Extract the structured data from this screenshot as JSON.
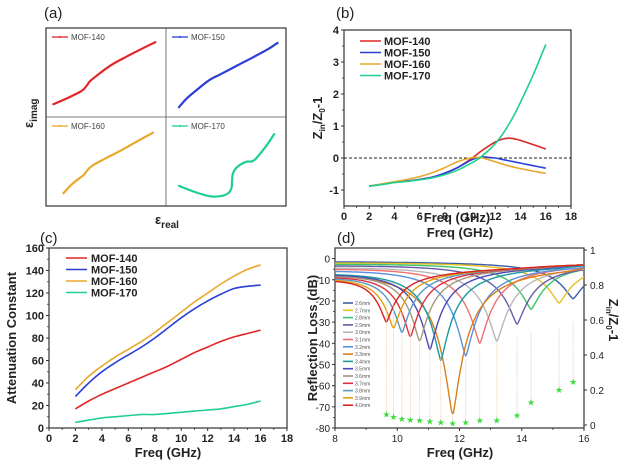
{
  "figure": {
    "panels": [
      "(a)",
      "(b)",
      "(c)",
      "(d)"
    ]
  },
  "colors": {
    "MOF-140": "#e02626",
    "MOF-150": "#2b3fd6",
    "MOF-160": "#e8a92b",
    "MOF-170": "#1fcf8e",
    "stars": "#3ddc3d",
    "droplines": "#f0c9a8"
  },
  "chart_data": [
    {
      "panel": "(a)",
      "type": "line",
      "title": "",
      "xlabel": "ε_real",
      "ylabel": "ε_imag",
      "xlabel_main": "ε",
      "xlabel_sub": "real",
      "ylabel_main": "ε",
      "ylabel_sub": "imag",
      "note": "2x2 grid of Cole-Cole curves, no numeric ticks; values normalized 0-1 within each cell",
      "series": [
        {
          "name": "MOF-140",
          "x": [
            0.03,
            0.15,
            0.28,
            0.33,
            0.36,
            0.45,
            0.55,
            0.68,
            0.82,
            0.94
          ],
          "y": [
            0.12,
            0.2,
            0.3,
            0.38,
            0.44,
            0.55,
            0.66,
            0.77,
            0.88,
            0.97
          ]
        },
        {
          "name": "MOF-150",
          "x": [
            0.08,
            0.15,
            0.25,
            0.35,
            0.45,
            0.6,
            0.75,
            0.88,
            0.96
          ],
          "y": [
            0.08,
            0.2,
            0.33,
            0.45,
            0.53,
            0.65,
            0.77,
            0.88,
            0.96
          ]
        },
        {
          "name": "MOF-160",
          "x": [
            0.12,
            0.2,
            0.3,
            0.33,
            0.38,
            0.5,
            0.65,
            0.8,
            0.92
          ],
          "y": [
            0.12,
            0.25,
            0.37,
            0.43,
            0.5,
            0.6,
            0.72,
            0.85,
            0.95
          ]
        },
        {
          "name": "MOF-170",
          "x": [
            0.08,
            0.2,
            0.35,
            0.45,
            0.52,
            0.55,
            0.56,
            0.6,
            0.68,
            0.75,
            0.85,
            0.93
          ],
          "y": [
            0.22,
            0.15,
            0.08,
            0.08,
            0.12,
            0.2,
            0.38,
            0.48,
            0.55,
            0.57,
            0.75,
            0.93
          ]
        }
      ]
    },
    {
      "panel": "(b)",
      "type": "line",
      "title": "",
      "xlabel": "Freq (GHz)",
      "ylabel": "Zin/Z0-1",
      "xlim": [
        0,
        18
      ],
      "ylim": [
        -1.5,
        4
      ],
      "xticks": [
        0,
        2,
        4,
        6,
        8,
        10,
        12,
        14,
        16,
        18
      ],
      "yticks": [
        -1,
        0,
        1,
        2,
        3,
        4
      ],
      "reference_line": {
        "y": 0,
        "style": "dashed"
      },
      "legend": "top-left",
      "x": [
        2,
        3,
        4,
        5,
        6,
        7,
        8,
        9,
        10,
        10.5,
        11,
        11.5,
        12,
        12.5,
        13,
        13.5,
        14,
        15,
        16
      ],
      "series": [
        {
          "name": "MOF-140",
          "values": [
            -0.88,
            -0.82,
            -0.76,
            -0.72,
            -0.67,
            -0.6,
            -0.48,
            -0.3,
            -0.05,
            0.1,
            0.25,
            0.38,
            0.5,
            0.58,
            0.62,
            0.6,
            0.55,
            0.42,
            0.28
          ]
        },
        {
          "name": "MOF-150",
          "values": [
            -0.88,
            -0.82,
            -0.76,
            -0.72,
            -0.67,
            -0.6,
            -0.47,
            -0.3,
            -0.08,
            0.0,
            0.03,
            0.02,
            0.0,
            -0.04,
            -0.08,
            -0.12,
            -0.16,
            -0.24,
            -0.32
          ]
        },
        {
          "name": "MOF-160",
          "values": [
            -0.88,
            -0.81,
            -0.74,
            -0.67,
            -0.58,
            -0.46,
            -0.3,
            -0.12,
            0.0,
            0.02,
            0.0,
            -0.06,
            -0.12,
            -0.18,
            -0.24,
            -0.29,
            -0.33,
            -0.41,
            -0.48
          ]
        },
        {
          "name": "MOF-170",
          "values": [
            -0.88,
            -0.83,
            -0.77,
            -0.73,
            -0.68,
            -0.62,
            -0.52,
            -0.38,
            -0.18,
            -0.07,
            0.08,
            0.25,
            0.45,
            0.7,
            1.0,
            1.35,
            1.75,
            2.6,
            3.55
          ]
        }
      ]
    },
    {
      "panel": "(c)",
      "type": "line",
      "title": "",
      "xlabel": "Freq (GHz)",
      "ylabel": "Attenuation Constant",
      "xlim": [
        0,
        18
      ],
      "ylim": [
        0,
        160
      ],
      "xticks": [
        0,
        2,
        4,
        6,
        8,
        10,
        12,
        14,
        16,
        18
      ],
      "yticks": [
        0,
        20,
        40,
        60,
        80,
        100,
        120,
        140,
        160
      ],
      "legend": "top-left",
      "x": [
        2,
        3,
        4,
        5,
        6,
        7,
        8,
        9,
        10,
        11,
        12,
        13,
        14,
        15,
        16
      ],
      "series": [
        {
          "name": "MOF-140",
          "values": [
            17,
            24,
            30,
            35,
            40,
            45,
            50,
            55,
            61,
            67,
            72,
            77,
            81,
            84,
            87
          ]
        },
        {
          "name": "MOF-150",
          "values": [
            28,
            40,
            50,
            58,
            65,
            72,
            80,
            89,
            98,
            106,
            113,
            119,
            124,
            126,
            127
          ]
        },
        {
          "name": "MOF-160",
          "values": [
            34,
            46,
            55,
            63,
            70,
            77,
            85,
            94,
            103,
            112,
            120,
            128,
            135,
            141,
            145
          ]
        },
        {
          "name": "MOF-170",
          "values": [
            5,
            7,
            9,
            10,
            11,
            12,
            12,
            13,
            14,
            15,
            16,
            17,
            19,
            21,
            24
          ]
        }
      ]
    },
    {
      "panel": "(d)",
      "type": "line",
      "title": "Freq (GHz)",
      "xlabel": "Freq (GHz)",
      "ylabel": "Reflection Loss (dB)",
      "y2label": "Zin/Z0-1",
      "xlim": [
        8,
        16
      ],
      "ylim": [
        -80,
        5
      ],
      "y2lim": [
        0,
        1
      ],
      "xticks": [
        8,
        10,
        12,
        14,
        16
      ],
      "yticks": [
        0,
        -10,
        -20,
        -30,
        -40,
        -50,
        -60,
        -70,
        -80
      ],
      "y2ticks": [
        0,
        0.2,
        0.4,
        0.6,
        0.8,
        1
      ],
      "legend": "left-middle",
      "series": [
        {
          "name": "2.6mm",
          "color": "#3a5fa8",
          "min_freq": 15.65,
          "min_rl": -19
        },
        {
          "name": "2.7mm",
          "color": "#e8c020",
          "min_freq": 15.2,
          "min_rl": -21
        },
        {
          "name": "2.8mm",
          "color": "#3cc46c",
          "min_freq": 14.3,
          "min_rl": -24
        },
        {
          "name": "2.9mm",
          "color": "#6a5aa8",
          "min_freq": 13.85,
          "min_rl": -31
        },
        {
          "name": "3.0mm",
          "color": "#b8b8b8",
          "min_freq": 13.2,
          "min_rl": -39
        },
        {
          "name": "3.1mm",
          "color": "#f07070",
          "min_freq": 12.65,
          "min_rl": -40
        },
        {
          "name": "3.2mm",
          "color": "#5a8fe0",
          "min_freq": 12.2,
          "min_rl": -46
        },
        {
          "name": "3.3mm",
          "color": "#d8801a",
          "min_freq": 11.78,
          "min_rl": -74
        },
        {
          "name": "3.4mm",
          "color": "#1a9a9a",
          "min_freq": 11.4,
          "min_rl": -48
        },
        {
          "name": "3.5mm",
          "color": "#4a4ab8",
          "min_freq": 11.05,
          "min_rl": -43
        },
        {
          "name": "3.6mm",
          "color": "#a09880",
          "min_freq": 10.72,
          "min_rl": -39
        },
        {
          "name": "3.7mm",
          "color": "#e03040",
          "min_freq": 10.42,
          "min_rl": -37
        },
        {
          "name": "3.8mm",
          "color": "#5a9ac0",
          "min_freq": 10.15,
          "min_rl": -35
        },
        {
          "name": "3.9mm",
          "color": "#e0a010",
          "min_freq": 9.88,
          "min_rl": -33
        },
        {
          "name": "4.0mm",
          "color": "#d82020",
          "min_freq": 9.65,
          "min_rl": -30
        }
      ],
      "stars": {
        "name": "Zin/Z0-1 at RL minima",
        "x": [
          9.65,
          9.88,
          10.15,
          10.42,
          10.72,
          11.05,
          11.4,
          11.78,
          12.2,
          12.65,
          13.2,
          13.85,
          14.3,
          15.2,
          15.65
        ],
        "y": [
          0.06,
          0.045,
          0.035,
          0.03,
          0.025,
          0.02,
          0.015,
          0.01,
          0.015,
          0.025,
          0.025,
          0.055,
          0.13,
          0.2,
          0.245
        ]
      }
    }
  ]
}
